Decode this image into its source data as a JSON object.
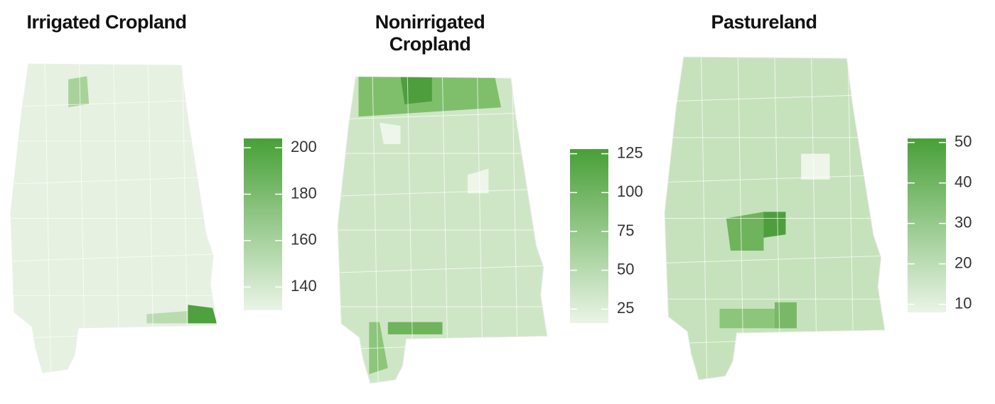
{
  "maps": [
    {
      "title": "Irrigated Cropland",
      "colorbar": {
        "lim": [
          130,
          204
        ],
        "ticks": [
          140,
          160,
          180,
          200
        ]
      }
    },
    {
      "title": "Nonirrigated Cropland",
      "colorbar": {
        "lim": [
          16,
          128
        ],
        "ticks": [
          25,
          50,
          75,
          100,
          125
        ]
      }
    },
    {
      "title": "Pastureland",
      "colorbar": {
        "lim": [
          8,
          51
        ],
        "ticks": [
          10,
          20,
          30,
          40,
          50
        ]
      }
    }
  ]
}
